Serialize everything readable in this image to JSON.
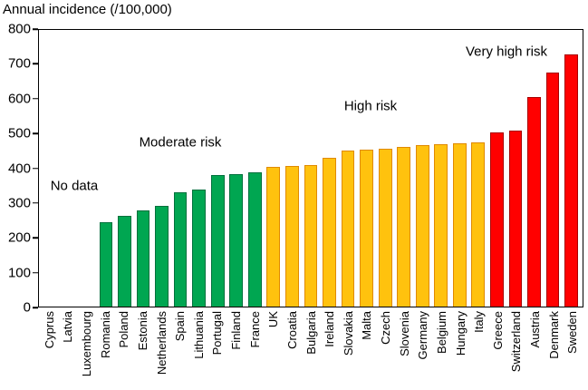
{
  "chart_data": {
    "type": "bar",
    "title": "Annual incidence (/100,000)",
    "xlabel": "",
    "ylabel": "Annual incidence (/100,000)",
    "ylim": [
      0,
      800
    ],
    "yticks": [
      0,
      100,
      200,
      300,
      400,
      500,
      600,
      700,
      800
    ],
    "grid": false,
    "legend": "none",
    "categories": [
      "Cyprus",
      "Latvia",
      "Luxembourg",
      "Romania",
      "Poland",
      "Estonia",
      "Netherlands",
      "Spain",
      "Lithuania",
      "Portugal",
      "Finland",
      "France",
      "UK",
      "Croatia",
      "Bulgaria",
      "Ireland",
      "Slovakia",
      "Malta",
      "Czech",
      "Slovenia",
      "Germany",
      "Belgium",
      "Hungary",
      "Italy",
      "Greece",
      "Switzerland",
      "Austria",
      "Denmark",
      "Sweden"
    ],
    "values": [
      0,
      0,
      0,
      245,
      262,
      277,
      290,
      330,
      338,
      380,
      382,
      387,
      405,
      406,
      410,
      430,
      452,
      454,
      457,
      462,
      468,
      470,
      472,
      476,
      503,
      508,
      607,
      678,
      730
    ],
    "groups": [
      "no-data",
      "no-data",
      "no-data",
      "moderate",
      "moderate",
      "moderate",
      "moderate",
      "moderate",
      "moderate",
      "moderate",
      "moderate",
      "moderate",
      "high",
      "high",
      "high",
      "high",
      "high",
      "high",
      "high",
      "high",
      "high",
      "high",
      "high",
      "high",
      "very-high",
      "very-high",
      "very-high",
      "very-high",
      "very-high"
    ],
    "group_labels": {
      "no-data": "No data",
      "moderate": "Moderate risk",
      "high": "High risk",
      "very-high": "Very high risk"
    },
    "colors": {
      "moderate": {
        "fill": "#00A651",
        "border": "#00703C"
      },
      "high": {
        "fill": "#FFC20E",
        "border": "#E08A00"
      },
      "very-high": {
        "fill": "#FF0000",
        "border": "#A80000"
      }
    },
    "annotations": [
      {
        "text": "No data",
        "x_pct": 6.5,
        "y_value": 350
      },
      {
        "text": "Moderate risk",
        "x_pct": 26,
        "y_value": 476
      },
      {
        "text": "High risk",
        "x_pct": 61,
        "y_value": 580
      },
      {
        "text": "Very high risk",
        "x_pct": 86,
        "y_value": 737
      }
    ]
  }
}
